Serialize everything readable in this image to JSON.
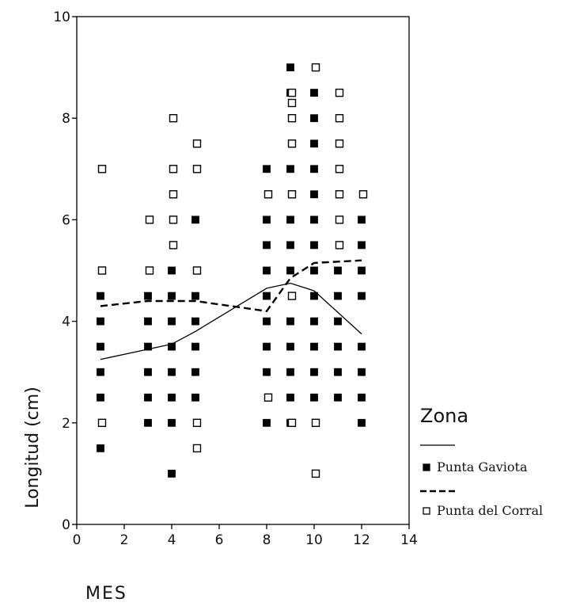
{
  "chart_data": {
    "type": "scatter",
    "title": "",
    "xlabel": "MES",
    "ylabel": "Longitud (cm)",
    "xlim": [
      0,
      14
    ],
    "ylim": [
      0,
      10
    ],
    "xticks": [
      0,
      2,
      4,
      6,
      8,
      10,
      12,
      14
    ],
    "yticks": [
      0,
      2,
      4,
      6,
      8,
      10
    ],
    "grid": false,
    "legend": {
      "title": "Zona",
      "position": "right"
    },
    "series": [
      {
        "name": "Punta Gaviota",
        "marker": "filled-square",
        "color": "#000000",
        "points": [
          [
            1,
            1.5
          ],
          [
            1,
            2.5
          ],
          [
            1,
            3.0
          ],
          [
            1,
            3.5
          ],
          [
            1,
            4.0
          ],
          [
            1,
            4.5
          ],
          [
            3,
            2.0
          ],
          [
            3,
            2.5
          ],
          [
            3,
            3.0
          ],
          [
            3,
            3.5
          ],
          [
            3,
            4.0
          ],
          [
            3,
            4.5
          ],
          [
            4,
            1.0
          ],
          [
            4,
            2.0
          ],
          [
            4,
            2.5
          ],
          [
            4,
            3.0
          ],
          [
            4,
            3.5
          ],
          [
            4,
            4.0
          ],
          [
            4,
            4.5
          ],
          [
            4,
            5.0
          ],
          [
            5,
            2.5
          ],
          [
            5,
            3.0
          ],
          [
            5,
            3.5
          ],
          [
            5,
            4.0
          ],
          [
            5,
            4.5
          ],
          [
            5,
            6.0
          ],
          [
            8,
            2.0
          ],
          [
            8,
            3.0
          ],
          [
            8,
            3.5
          ],
          [
            8,
            4.0
          ],
          [
            8,
            4.5
          ],
          [
            8,
            5.0
          ],
          [
            8,
            5.5
          ],
          [
            8,
            6.0
          ],
          [
            8,
            7.0
          ],
          [
            9,
            2.0
          ],
          [
            9,
            2.5
          ],
          [
            9,
            3.0
          ],
          [
            9,
            3.5
          ],
          [
            9,
            4.0
          ],
          [
            9,
            5.0
          ],
          [
            9,
            5.5
          ],
          [
            9,
            6.0
          ],
          [
            9,
            7.0
          ],
          [
            9,
            8.5
          ],
          [
            9,
            9.0
          ],
          [
            10,
            2.5
          ],
          [
            10,
            3.0
          ],
          [
            10,
            3.5
          ],
          [
            10,
            4.0
          ],
          [
            10,
            4.5
          ],
          [
            10,
            5.0
          ],
          [
            10,
            5.5
          ],
          [
            10,
            6.0
          ],
          [
            10,
            6.5
          ],
          [
            10,
            7.0
          ],
          [
            10,
            7.5
          ],
          [
            10,
            8.0
          ],
          [
            10,
            8.5
          ],
          [
            11,
            2.5
          ],
          [
            11,
            3.0
          ],
          [
            11,
            3.5
          ],
          [
            11,
            4.0
          ],
          [
            11,
            4.5
          ],
          [
            11,
            5.0
          ],
          [
            12,
            2.0
          ],
          [
            12,
            2.5
          ],
          [
            12,
            3.0
          ],
          [
            12,
            3.5
          ],
          [
            12,
            4.5
          ],
          [
            12,
            5.0
          ],
          [
            12,
            5.5
          ],
          [
            12,
            6.0
          ]
        ],
        "line": [
          [
            1,
            3.25
          ],
          [
            3,
            3.45
          ],
          [
            4,
            3.55
          ],
          [
            5,
            3.8
          ],
          [
            8,
            4.65
          ],
          [
            9,
            4.75
          ],
          [
            10,
            4.6
          ],
          [
            12,
            3.75
          ]
        ]
      },
      {
        "name": "Punta del Corral",
        "marker": "open-square",
        "color": "#000000",
        "points": [
          [
            1,
            2.0
          ],
          [
            1,
            5.0
          ],
          [
            1,
            7.0
          ],
          [
            3,
            5.0
          ],
          [
            3,
            6.0
          ],
          [
            4,
            5.5
          ],
          [
            4,
            6.0
          ],
          [
            4,
            6.5
          ],
          [
            4,
            7.0
          ],
          [
            4,
            8.0
          ],
          [
            5,
            1.5
          ],
          [
            5,
            2.0
          ],
          [
            5,
            5.0
          ],
          [
            5,
            7.0
          ],
          [
            5,
            7.5
          ],
          [
            8,
            2.5
          ],
          [
            8,
            6.5
          ],
          [
            9,
            2.0
          ],
          [
            9,
            4.5
          ],
          [
            9,
            6.5
          ],
          [
            9,
            7.5
          ],
          [
            9,
            8.0
          ],
          [
            9,
            8.3
          ],
          [
            9,
            8.5
          ],
          [
            10,
            1.0
          ],
          [
            10,
            2.0
          ],
          [
            10,
            9.0
          ],
          [
            11,
            5.5
          ],
          [
            11,
            6.0
          ],
          [
            11,
            6.5
          ],
          [
            11,
            7.0
          ],
          [
            11,
            7.5
          ],
          [
            11,
            8.0
          ],
          [
            11,
            8.5
          ],
          [
            12,
            6.5
          ]
        ],
        "line": [
          [
            1,
            4.3
          ],
          [
            3,
            4.4
          ],
          [
            5,
            4.4
          ],
          [
            8,
            4.2
          ],
          [
            9,
            4.85
          ],
          [
            10,
            5.15
          ],
          [
            12,
            5.2
          ]
        ]
      }
    ]
  }
}
